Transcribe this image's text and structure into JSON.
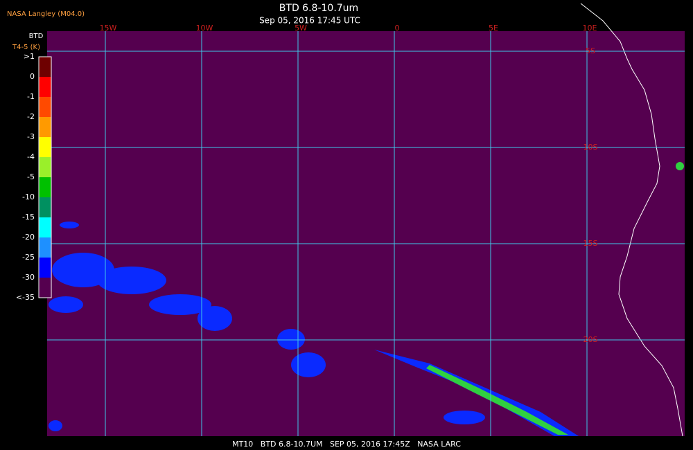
{
  "header": {
    "source": "NASA Langley (M04.0)",
    "title": "BTD 6.8-10.7um",
    "subtitle": "Sep 05, 2016 17:45 UTC"
  },
  "legend": {
    "title": "BTD",
    "unit": "T4-5 (K)",
    "labels": [
      ">1",
      "0",
      "-1",
      "-2",
      "-3",
      "-4",
      "-5",
      "-10",
      "-15",
      "-20",
      "-25",
      "-30",
      "<-35"
    ],
    "colors": [
      "#6e0000",
      "#ff0000",
      "#ff4a00",
      "#ff9a00",
      "#ffff00",
      "#9aef2a",
      "#00c000",
      "#009060",
      "#00ffff",
      "#1e90ff",
      "#0000ff",
      "#55004f"
    ]
  },
  "map": {
    "lon_labels": [
      "15W",
      "10W",
      "5W",
      "0",
      "5E",
      "10E"
    ],
    "lat_labels": [
      "5S",
      "10S",
      "15S",
      "20S"
    ]
  },
  "footer": "MT10   BTD 6.8-10.7UM   SEP 05, 2016 17:45Z   NASA LARC"
}
